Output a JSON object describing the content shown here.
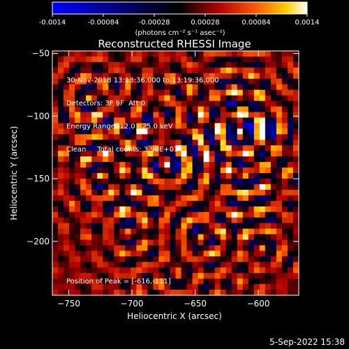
{
  "chart_data": {
    "type": "heatmap",
    "title": "Reconstructed RHESSI Image",
    "xlabel": "Heliocentric X (arcsec)",
    "ylabel": "Heliocentric Y (arcsec)",
    "xlim": [
      -763,
      -568
    ],
    "ylim": [
      -243,
      -48
    ],
    "x_ticks": [
      -750,
      -700,
      -650,
      -600
    ],
    "y_ticks": [
      -50,
      -100,
      -150,
      -200
    ],
    "colorbar": {
      "range": [
        -0.0014,
        0.0014
      ],
      "ticks": [
        "-0.0014",
        "-0.00084",
        "-0.00028",
        "0.00028",
        "0.00084",
        "0.0014"
      ],
      "label": "(photons cm⁻² s⁻¹ asec⁻²)",
      "colormap": "blue-black-red-yellow-white"
    },
    "peak": {
      "x": -616,
      "y": -111
    },
    "annotations": {
      "time_range": "30-Nov-2018 13:13:36.000 to 13:19:36.000",
      "detectors": "Detectors: 3F 9F  Att 0",
      "energy_range": "Energy Range: 12.0 - 25.0 keV",
      "method": "Clean     Total counts: 3.98E+03",
      "peak_label": "Position of Peak = [-616,-111]"
    }
  },
  "footer": {
    "date": "5-Sep-2022 15:38"
  }
}
